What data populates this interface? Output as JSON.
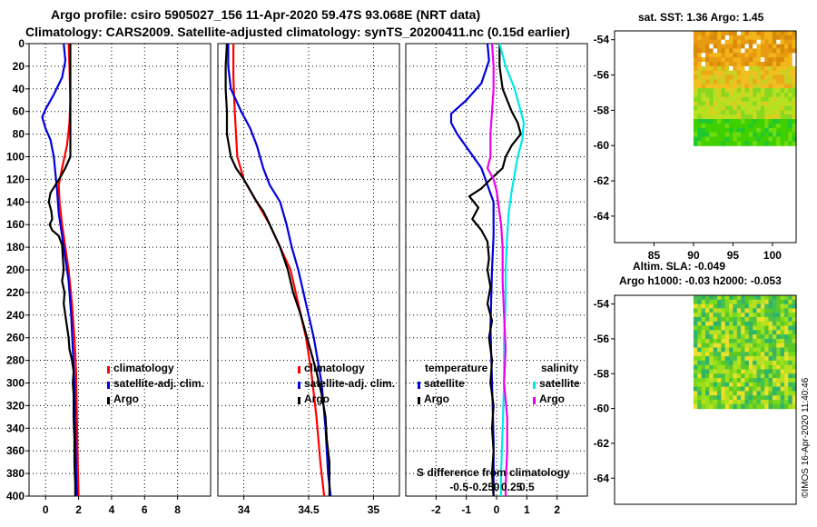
{
  "header": {
    "line1": "Argo profile: csiro 5905027_156 11-Apr-2020 59.47S 93.068E (NRT data)",
    "line2": "Climatology: CARS2009. Satellite-adjusted climatology: synTS_20200411.nc (0.15d earlier)"
  },
  "colors": {
    "climatology": "#ff0000",
    "satellite": "#0000dd",
    "argo": "#000000",
    "sat_salinity": "#00e8e8",
    "argo_salinity": "#ee00ee",
    "grid": "#000000"
  },
  "watermark": "©IMOS 16-Apr-2020 11:40:46",
  "chart_data": [
    {
      "type": "line",
      "name": "temperature-profile",
      "xlim": [
        -1,
        10
      ],
      "ylim": [
        400,
        0
      ],
      "xticks": [
        "0",
        "2",
        "4",
        "6",
        "8"
      ],
      "xtick_values": [
        0,
        2,
        4,
        6,
        8
      ],
      "yticks": [
        "0",
        "20",
        "40",
        "60",
        "80",
        "100",
        "120",
        "140",
        "160",
        "180",
        "200",
        "220",
        "240",
        "260",
        "280",
        "300",
        "320",
        "340",
        "360",
        "380",
        "400"
      ],
      "ytick_values": [
        0,
        20,
        40,
        60,
        80,
        100,
        120,
        140,
        160,
        180,
        200,
        220,
        240,
        260,
        280,
        300,
        320,
        340,
        360,
        380,
        400
      ],
      "legend": [
        "climatology",
        "satellite-adj. clim.",
        "Argo"
      ],
      "series": [
        {
          "name": "climatology",
          "color": "#ff0000",
          "points": [
            [
              1.4,
              0
            ],
            [
              1.45,
              20
            ],
            [
              1.5,
              50
            ],
            [
              1.45,
              70
            ],
            [
              1.3,
              90
            ],
            [
              1.0,
              110
            ],
            [
              0.8,
              125
            ],
            [
              0.85,
              140
            ],
            [
              1.0,
              160
            ],
            [
              1.2,
              180
            ],
            [
              1.4,
              200
            ],
            [
              1.6,
              230
            ],
            [
              1.75,
              260
            ],
            [
              1.85,
              290
            ],
            [
              1.9,
              330
            ],
            [
              1.95,
              370
            ],
            [
              2.0,
              400
            ]
          ]
        },
        {
          "name": "satellite-adj. clim.",
          "color": "#0000dd",
          "points": [
            [
              1.1,
              0
            ],
            [
              1.2,
              15
            ],
            [
              1.0,
              30
            ],
            [
              0.5,
              45
            ],
            [
              0.0,
              58
            ],
            [
              -0.2,
              65
            ],
            [
              0.0,
              75
            ],
            [
              0.3,
              85
            ],
            [
              0.5,
              100
            ],
            [
              0.6,
              115
            ],
            [
              0.7,
              130
            ],
            [
              0.8,
              150
            ],
            [
              1.0,
              170
            ],
            [
              1.2,
              190
            ],
            [
              1.4,
              210
            ],
            [
              1.55,
              240
            ],
            [
              1.65,
              270
            ],
            [
              1.75,
              300
            ],
            [
              1.8,
              340
            ],
            [
              1.85,
              380
            ],
            [
              1.9,
              400
            ]
          ]
        },
        {
          "name": "Argo",
          "color": "#000000",
          "points": [
            [
              1.5,
              0
            ],
            [
              1.5,
              30
            ],
            [
              1.5,
              60
            ],
            [
              1.5,
              90
            ],
            [
              1.5,
              100
            ],
            [
              1.2,
              110
            ],
            [
              0.9,
              118
            ],
            [
              0.6,
              125
            ],
            [
              0.3,
              132
            ],
            [
              0.2,
              140
            ],
            [
              0.35,
              148
            ],
            [
              0.4,
              155
            ],
            [
              0.25,
              160
            ],
            [
              0.4,
              165
            ],
            [
              0.8,
              170
            ],
            [
              1.0,
              178
            ],
            [
              1.05,
              190
            ],
            [
              1.1,
              200
            ],
            [
              1.0,
              210
            ],
            [
              1.15,
              220
            ],
            [
              1.1,
              230
            ],
            [
              1.2,
              240
            ],
            [
              1.3,
              250
            ],
            [
              1.4,
              260
            ],
            [
              1.45,
              270
            ],
            [
              1.6,
              280
            ],
            [
              1.7,
              290
            ],
            [
              1.65,
              300
            ],
            [
              1.7,
              310
            ],
            [
              1.7,
              330
            ],
            [
              1.75,
              350
            ],
            [
              1.75,
              370
            ],
            [
              1.8,
              390
            ],
            [
              1.8,
              400
            ]
          ]
        }
      ]
    },
    {
      "type": "line",
      "name": "salinity-profile",
      "xlim": [
        33.8,
        35.2
      ],
      "ylim": [
        400,
        0
      ],
      "xticks": [
        "34",
        "34.5",
        "35"
      ],
      "xtick_values": [
        34,
        34.5,
        35
      ],
      "legend": [
        "climatology",
        "satellite-adj. clim.",
        "Argo"
      ],
      "series": [
        {
          "name": "climatology",
          "color": "#ff0000",
          "points": [
            [
              33.92,
              0
            ],
            [
              33.92,
              30
            ],
            [
              33.93,
              60
            ],
            [
              33.94,
              80
            ],
            [
              33.95,
              100
            ],
            [
              34.0,
              120
            ],
            [
              34.1,
              140
            ],
            [
              34.2,
              160
            ],
            [
              34.28,
              180
            ],
            [
              34.36,
              200
            ],
            [
              34.42,
              230
            ],
            [
              34.48,
              260
            ],
            [
              34.52,
              290
            ],
            [
              34.56,
              330
            ],
            [
              34.59,
              370
            ],
            [
              34.62,
              400
            ]
          ]
        },
        {
          "name": "satellite-adj. clim.",
          "color": "#0000dd",
          "points": [
            [
              33.88,
              0
            ],
            [
              33.88,
              20
            ],
            [
              33.9,
              40
            ],
            [
              33.98,
              60
            ],
            [
              34.05,
              75
            ],
            [
              34.1,
              90
            ],
            [
              34.15,
              110
            ],
            [
              34.2,
              125
            ],
            [
              34.28,
              140
            ],
            [
              34.33,
              160
            ],
            [
              34.37,
              180
            ],
            [
              34.42,
              200
            ],
            [
              34.48,
              230
            ],
            [
              34.54,
              260
            ],
            [
              34.6,
              300
            ],
            [
              34.63,
              340
            ],
            [
              34.65,
              380
            ],
            [
              34.67,
              400
            ]
          ]
        },
        {
          "name": "Argo",
          "color": "#000000",
          "points": [
            [
              33.87,
              0
            ],
            [
              33.86,
              20
            ],
            [
              33.86,
              40
            ],
            [
              33.87,
              60
            ],
            [
              33.87,
              80
            ],
            [
              33.9,
              100
            ],
            [
              33.94,
              110
            ],
            [
              34.0,
              120
            ],
            [
              34.05,
              130
            ],
            [
              34.1,
              140
            ],
            [
              34.15,
              148
            ],
            [
              34.18,
              155
            ],
            [
              34.22,
              165
            ],
            [
              34.28,
              180
            ],
            [
              34.34,
              200
            ],
            [
              34.38,
              220
            ],
            [
              34.44,
              240
            ],
            [
              34.5,
              265
            ],
            [
              34.56,
              290
            ],
            [
              34.6,
              310
            ],
            [
              34.63,
              330
            ],
            [
              34.64,
              350
            ],
            [
              34.66,
              370
            ],
            [
              34.66,
              390
            ],
            [
              34.66,
              400
            ]
          ]
        }
      ]
    },
    {
      "type": "line",
      "name": "difference-profile",
      "xlim": [
        -3,
        3
      ],
      "ylim": [
        400,
        0
      ],
      "xticks": [
        "-2",
        "-1",
        "0",
        "1",
        "2"
      ],
      "xtick_values": [
        -2,
        -1,
        0,
        1,
        2
      ],
      "annotation": "S difference from climatology",
      "s_ticks": [
        "-0.5",
        "-0.25",
        "0",
        "0.25",
        "0.5"
      ],
      "legend_temperature": "temperature",
      "legend_salinity": "salinity",
      "legend_items": [
        "satellite",
        "Argo",
        "satellite",
        "Argo"
      ],
      "series": [
        {
          "name": "temperature satellite",
          "color": "#0000dd",
          "points": [
            [
              -0.3,
              0
            ],
            [
              -0.25,
              15
            ],
            [
              -0.5,
              35
            ],
            [
              -1.0,
              50
            ],
            [
              -1.5,
              62
            ],
            [
              -1.5,
              70
            ],
            [
              -1.3,
              80
            ],
            [
              -0.9,
              95
            ],
            [
              -0.5,
              110
            ],
            [
              -0.3,
              125
            ],
            [
              -0.1,
              140
            ],
            [
              -0.1,
              170
            ],
            [
              -0.15,
              200
            ],
            [
              -0.2,
              250
            ],
            [
              -0.15,
              300
            ],
            [
              -0.1,
              350
            ],
            [
              -0.1,
              400
            ]
          ]
        },
        {
          "name": "temperature Argo",
          "color": "#000000",
          "points": [
            [
              0.1,
              0
            ],
            [
              0.1,
              20
            ],
            [
              0.2,
              40
            ],
            [
              0.5,
              60
            ],
            [
              0.7,
              70
            ],
            [
              0.8,
              80
            ],
            [
              0.5,
              90
            ],
            [
              0.3,
              100
            ],
            [
              0.2,
              110
            ],
            [
              -0.2,
              120
            ],
            [
              -0.5,
              128
            ],
            [
              -0.9,
              135
            ],
            [
              -0.6,
              145
            ],
            [
              -0.8,
              155
            ],
            [
              -0.5,
              165
            ],
            [
              -0.3,
              175
            ],
            [
              -0.25,
              190
            ],
            [
              -0.3,
              200
            ],
            [
              -0.2,
              215
            ],
            [
              -0.3,
              230
            ],
            [
              -0.15,
              245
            ],
            [
              -0.25,
              260
            ],
            [
              -0.15,
              280
            ],
            [
              -0.2,
              300
            ],
            [
              -0.1,
              320
            ],
            [
              -0.15,
              340
            ],
            [
              -0.1,
              360
            ],
            [
              -0.15,
              380
            ],
            [
              -0.1,
              400
            ]
          ]
        },
        {
          "name": "salinity satellite",
          "color": "#00e8e8",
          "points": [
            [
              0.1,
              0
            ],
            [
              0.3,
              20
            ],
            [
              0.6,
              40
            ],
            [
              0.8,
              60
            ],
            [
              0.9,
              70
            ],
            [
              0.85,
              85
            ],
            [
              0.7,
              100
            ],
            [
              0.6,
              115
            ],
            [
              0.5,
              130
            ],
            [
              0.4,
              150
            ],
            [
              0.35,
              170
            ],
            [
              0.3,
              200
            ],
            [
              0.3,
              230
            ],
            [
              0.25,
              260
            ],
            [
              0.25,
              300
            ],
            [
              0.2,
              340
            ],
            [
              0.15,
              380
            ],
            [
              0.15,
              400
            ]
          ]
        },
        {
          "name": "salinity Argo",
          "color": "#ee00ee",
          "points": [
            [
              -0.15,
              0
            ],
            [
              -0.1,
              20
            ],
            [
              -0.1,
              40
            ],
            [
              -0.15,
              60
            ],
            [
              -0.2,
              80
            ],
            [
              -0.2,
              100
            ],
            [
              -0.3,
              110
            ],
            [
              -0.1,
              120
            ],
            [
              0.0,
              130
            ],
            [
              0.05,
              140
            ],
            [
              0.15,
              160
            ],
            [
              0.2,
              180
            ],
            [
              0.2,
              210
            ],
            [
              0.25,
              240
            ],
            [
              0.3,
              270
            ],
            [
              0.25,
              300
            ],
            [
              0.35,
              330
            ],
            [
              0.35,
              360
            ],
            [
              0.3,
              390
            ],
            [
              0.3,
              400
            ]
          ]
        }
      ]
    },
    {
      "type": "heatmap",
      "name": "sst-map",
      "title": "sat. SST: 1.36 Argo: 1.45",
      "xlim": [
        80,
        103
      ],
      "ylim": [
        -65.5,
        -53.5
      ],
      "xticks": [
        "85",
        "90",
        "95",
        "100"
      ],
      "xtick_values": [
        85,
        90,
        95,
        100
      ],
      "yticks": [
        "-54",
        "-56",
        "-58",
        "-60",
        "-62",
        "-64"
      ],
      "ytick_values": [
        -54,
        -56,
        -58,
        -60,
        -62,
        -64
      ],
      "data_extent": {
        "lon": [
          90,
          103
        ],
        "lat": [
          -60,
          -53.5
        ]
      }
    },
    {
      "type": "heatmap",
      "name": "sla-map",
      "title": "Altim. SLA: -0.049",
      "subtitle": "Argo h1000: -0.03 h2000: -0.053",
      "xlim": [
        80,
        103
      ],
      "ylim": [
        -65.5,
        -53.5
      ],
      "yticks": [
        "-54",
        "-56",
        "-58",
        "-60",
        "-62",
        "-64"
      ],
      "ytick_values": [
        -54,
        -56,
        -58,
        -60,
        -62,
        -64
      ],
      "data_extent": {
        "lon": [
          90,
          103
        ],
        "lat": [
          -60,
          -53.5
        ]
      }
    }
  ]
}
